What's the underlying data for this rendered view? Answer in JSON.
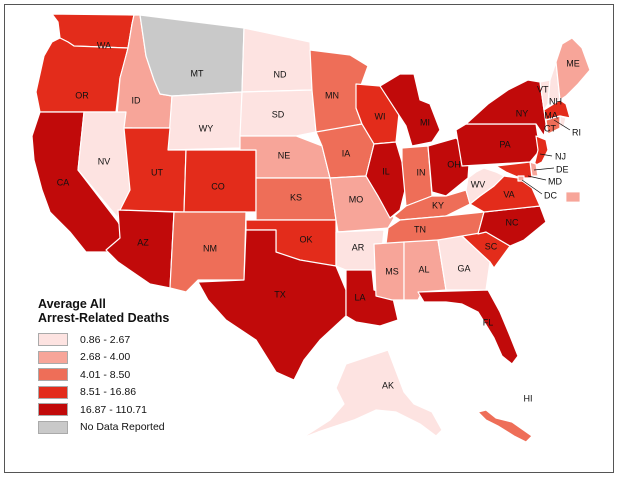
{
  "legend": {
    "title_line1": "Average All",
    "title_line2": "Arrest-Related Deaths",
    "classes": [
      {
        "label": "0.86 - 2.67",
        "color": "#fde3e1"
      },
      {
        "label": "2.68 - 4.00",
        "color": "#f7a599"
      },
      {
        "label": "4.01 - 8.50",
        "color": "#ee6e58"
      },
      {
        "label": "8.51 - 16.86",
        "color": "#e32c1b"
      },
      {
        "label": "16.87 - 110.71",
        "color": "#c10a0a"
      },
      {
        "label": "No Data Reported",
        "color": "#c9c9c9"
      }
    ]
  },
  "states": {
    "WA": {
      "label": "WA",
      "class": 4
    },
    "OR": {
      "label": "OR",
      "class": 4
    },
    "CA": {
      "label": "CA",
      "class": 5
    },
    "ID": {
      "label": "ID",
      "class": 2
    },
    "NV": {
      "label": "NV",
      "class": 1
    },
    "MT": {
      "label": "MT",
      "class": 0
    },
    "WY": {
      "label": "WY",
      "class": 1
    },
    "UT": {
      "label": "UT",
      "class": 4
    },
    "AZ": {
      "label": "AZ",
      "class": 5
    },
    "CO": {
      "label": "CO",
      "class": 4
    },
    "NM": {
      "label": "NM",
      "class": 3
    },
    "ND": {
      "label": "ND",
      "class": 1
    },
    "SD": {
      "label": "SD",
      "class": 1
    },
    "NE": {
      "label": "NE",
      "class": 2
    },
    "KS": {
      "label": "KS",
      "class": 3
    },
    "OK": {
      "label": "OK",
      "class": 4
    },
    "TX": {
      "label": "TX",
      "class": 5
    },
    "MN": {
      "label": "MN",
      "class": 3
    },
    "IA": {
      "label": "IA",
      "class": 3
    },
    "MO": {
      "label": "MO",
      "class": 2
    },
    "AR": {
      "label": "AR",
      "class": 1
    },
    "LA": {
      "label": "LA",
      "class": 5
    },
    "WI": {
      "label": "WI",
      "class": 4
    },
    "IL": {
      "label": "IL",
      "class": 5
    },
    "MI": {
      "label": "MI",
      "class": 5
    },
    "IN": {
      "label": "IN",
      "class": 3
    },
    "OH": {
      "label": "OH",
      "class": 5
    },
    "KY": {
      "label": "KY",
      "class": 3
    },
    "TN": {
      "label": "TN",
      "class": 3
    },
    "MS": {
      "label": "MS",
      "class": 2
    },
    "AL": {
      "label": "AL",
      "class": 2
    },
    "GA": {
      "label": "GA",
      "class": 1
    },
    "FL": {
      "label": "FL",
      "class": 5
    },
    "SC": {
      "label": "SC",
      "class": 4
    },
    "NC": {
      "label": "NC",
      "class": 5
    },
    "VA": {
      "label": "VA",
      "class": 4
    },
    "WV": {
      "label": "WV",
      "class": 1
    },
    "PA": {
      "label": "PA",
      "class": 5
    },
    "NY": {
      "label": "NY",
      "class": 5
    },
    "VT": {
      "label": "VT",
      "class": 1
    },
    "NH": {
      "label": "NH",
      "class": 1
    },
    "ME": {
      "label": "ME",
      "class": 2
    },
    "MA": {
      "label": "MA",
      "class": 4
    },
    "RI": {
      "label": "RI",
      "class": 1
    },
    "CT": {
      "label": "CT",
      "class": 3
    },
    "NJ": {
      "label": "NJ",
      "class": 4
    },
    "DE": {
      "label": "DE",
      "class": 2
    },
    "MD": {
      "label": "MD",
      "class": 4
    },
    "DC": {
      "label": "DC",
      "class": 2
    },
    "AK": {
      "label": "AK",
      "class": 1
    },
    "HI": {
      "label": "HI",
      "class": 3
    }
  }
}
